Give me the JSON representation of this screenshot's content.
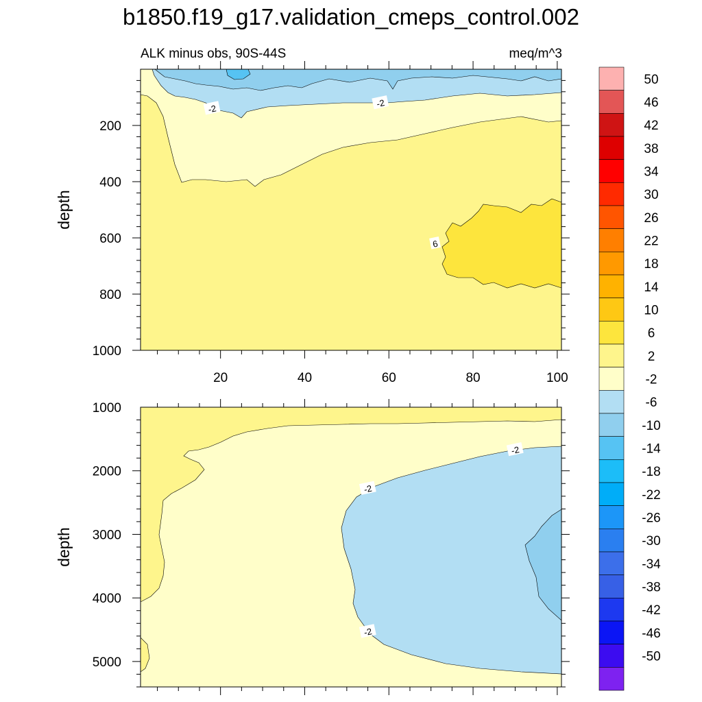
{
  "chart_data": {
    "type": "heatmap",
    "title": "b1850.f19_g17.validation_cmeps_control.002",
    "subtitle_left": "ALK minus obs, 90S-44S",
    "subtitle_right": "meq/m^3",
    "colorbar": {
      "labels": [
        "50",
        "46",
        "42",
        "38",
        "34",
        "30",
        "26",
        "22",
        "18",
        "14",
        "10",
        "6",
        "2",
        "-2",
        "-6",
        "-10",
        "-14",
        "-18",
        "-22",
        "-26",
        "-30",
        "-34",
        "-38",
        "-42",
        "-46",
        "-50"
      ],
      "colors": [
        "#fdb1b0",
        "#e35656",
        "#cf1414",
        "#de0000",
        "#ff0000",
        "#ff2a00",
        "#ff5500",
        "#ff7f00",
        "#ff9900",
        "#ffb200",
        "#fec814",
        "#fde53d",
        "#fef58c",
        "#fffec9",
        "#b2def3",
        "#90cfee",
        "#56c3f3",
        "#1cbdf8",
        "#00adf8",
        "#1c96f8",
        "#2a7ff0",
        "#3c6fea",
        "#3760e6",
        "#1d39f0",
        "#0b15f5",
        "#3c0cf0",
        "#7e22f0"
      ]
    },
    "panels": [
      {
        "name": "upper",
        "ylabel": "depth",
        "xlabel": "",
        "x_ticks": [
          "20",
          "40",
          "60",
          "80",
          "100"
        ],
        "x_tick_values": [
          20,
          40,
          60,
          80,
          100
        ],
        "y_ticks": [
          "200",
          "400",
          "600",
          "800",
          "1000"
        ],
        "y_tick_values": [
          200,
          400,
          600,
          800,
          1000
        ],
        "xlim": [
          1,
          101
        ],
        "ylim": [
          0,
          1000
        ],
        "contour_labels": [
          {
            "text": "-2",
            "x": 18,
            "y": 140
          },
          {
            "text": "-2",
            "x": 58,
            "y": 120
          },
          {
            "text": "6",
            "x": 71,
            "y": 620
          }
        ]
      },
      {
        "name": "lower",
        "ylabel": "depth",
        "xlabel": "",
        "x_ticks": [],
        "x_tick_values": [
          20,
          40,
          60,
          80,
          100
        ],
        "y_ticks": [
          "1000",
          "2000",
          "3000",
          "4000",
          "5000"
        ],
        "y_tick_values": [
          1000,
          2000,
          3000,
          4000,
          5000
        ],
        "xlim": [
          1,
          101
        ],
        "ylim": [
          1000,
          5400
        ],
        "contour_labels": [
          {
            "text": "-2",
            "x": 90,
            "y": 1670
          },
          {
            "text": "-2",
            "x": 55,
            "y": 2280
          },
          {
            "text": "-2",
            "x": 55,
            "y": 4530
          }
        ]
      }
    ]
  }
}
